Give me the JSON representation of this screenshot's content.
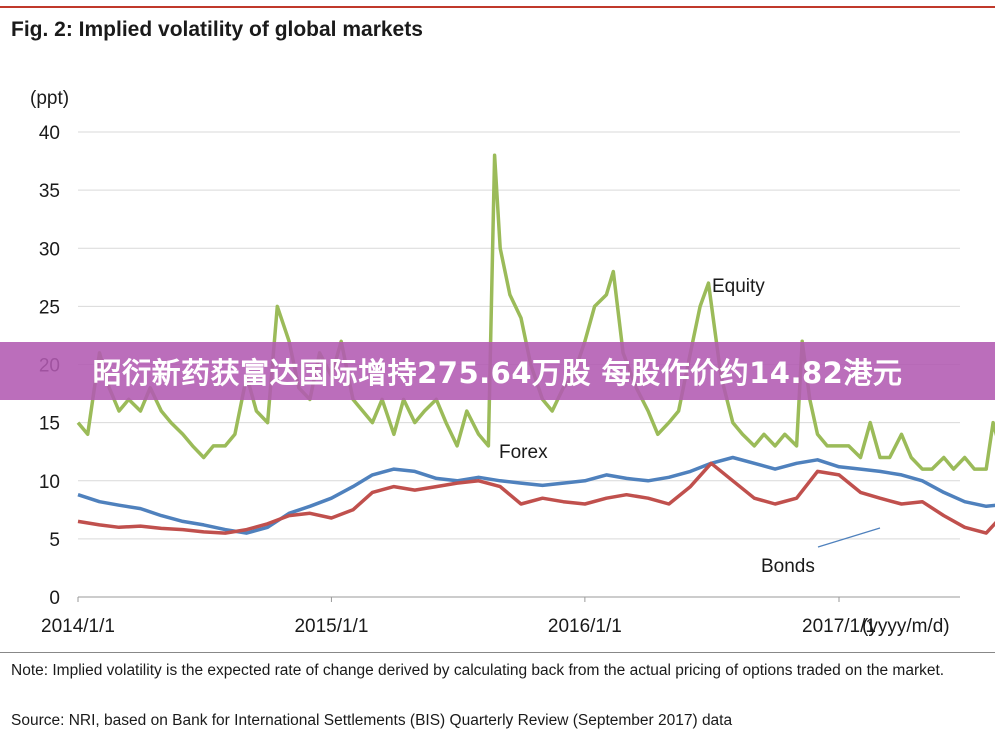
{
  "figure": {
    "title": "Fig. 2: Implied volatility of global markets",
    "note": "Note: Implied volatility is the expected rate of change derived by calculating back from the actual pricing of options traded on the market.",
    "source": "Source: NRI, based on Bank for International Settlements (BIS) Quarterly Review (September 2017) data"
  },
  "banner": {
    "text": "昭衍新药获富达国际增持275.64万股 每股作价约14.82港元"
  },
  "chart_data": {
    "type": "line",
    "title": "Fig. 2: Implied volatility of global markets",
    "ylabel": "(ppt)",
    "xlabel": "(yyyy/m/d)",
    "ylim": [
      0,
      40
    ],
    "yticks": [
      0,
      5,
      10,
      15,
      20,
      25,
      30,
      35,
      40
    ],
    "ytick_labels": [
      "0",
      "5",
      "10",
      "15",
      "20",
      "25",
      "30",
      "35",
      "40"
    ],
    "xlim": [
      "2014-01-01",
      "2017-09-01"
    ],
    "xticks": [
      "2014/1/1",
      "2015/1/1",
      "2016/1/1",
      "2017/1/1"
    ],
    "grid": true,
    "legend": "inline labels",
    "series": [
      {
        "name": "Equity",
        "color": "#9bbb59",
        "x": [
          "2014-01-01",
          "2014-01-15",
          "2014-02-01",
          "2014-02-15",
          "2014-03-01",
          "2014-03-15",
          "2014-04-01",
          "2014-04-15",
          "2014-05-01",
          "2014-05-15",
          "2014-06-01",
          "2014-06-15",
          "2014-07-01",
          "2014-07-15",
          "2014-08-01",
          "2014-08-15",
          "2014-09-01",
          "2014-09-15",
          "2014-10-01",
          "2014-10-15",
          "2014-11-01",
          "2014-11-15",
          "2014-12-01",
          "2014-12-15",
          "2015-01-01",
          "2015-01-15",
          "2015-02-01",
          "2015-02-15",
          "2015-03-01",
          "2015-03-15",
          "2015-04-01",
          "2015-04-15",
          "2015-05-01",
          "2015-05-15",
          "2015-06-01",
          "2015-06-15",
          "2015-07-01",
          "2015-07-15",
          "2015-08-01",
          "2015-08-15",
          "2015-08-24",
          "2015-09-01",
          "2015-09-15",
          "2015-10-01",
          "2015-10-15",
          "2015-11-01",
          "2015-11-15",
          "2015-12-01",
          "2015-12-15",
          "2016-01-01",
          "2016-01-15",
          "2016-02-01",
          "2016-02-11",
          "2016-02-25",
          "2016-03-15",
          "2016-04-01",
          "2016-04-15",
          "2016-05-01",
          "2016-05-15",
          "2016-06-01",
          "2016-06-15",
          "2016-06-27",
          "2016-07-15",
          "2016-08-01",
          "2016-08-15",
          "2016-09-01",
          "2016-09-15",
          "2016-10-01",
          "2016-10-15",
          "2016-11-01",
          "2016-11-09",
          "2016-11-20",
          "2016-12-01",
          "2016-12-15",
          "2017-01-01",
          "2017-01-15",
          "2017-02-01",
          "2017-02-15",
          "2017-03-01",
          "2017-03-15",
          "2017-04-01",
          "2017-04-15",
          "2017-05-01",
          "2017-05-15",
          "2017-06-01",
          "2017-06-15",
          "2017-07-01",
          "2017-07-15",
          "2017-08-01",
          "2017-08-11",
          "2017-08-20",
          "2017-09-01"
        ],
        "values": [
          15,
          14,
          21,
          18,
          16,
          17,
          16,
          18,
          16,
          15,
          14,
          13,
          12,
          13,
          13,
          14,
          19,
          16,
          15,
          25,
          22,
          18,
          17,
          21,
          19,
          22,
          17,
          16,
          15,
          17,
          14,
          17,
          15,
          16,
          17,
          15,
          13,
          16,
          14,
          13,
          38,
          30,
          26,
          24,
          20,
          17,
          16,
          18,
          19,
          22,
          25,
          26,
          28,
          21,
          18,
          16,
          14,
          15,
          16,
          21,
          25,
          27,
          19,
          15,
          14,
          13,
          14,
          13,
          14,
          13,
          22,
          17,
          14,
          13,
          13,
          13,
          12,
          15,
          12,
          12,
          14,
          12,
          11,
          11,
          12,
          11,
          12,
          11,
          11,
          15,
          13,
          11
        ]
      },
      {
        "name": "Forex",
        "color": "#4f81bd",
        "x": [
          "2014-01-01",
          "2014-02-01",
          "2014-03-01",
          "2014-04-01",
          "2014-05-01",
          "2014-06-01",
          "2014-07-01",
          "2014-08-01",
          "2014-09-01",
          "2014-10-01",
          "2014-11-01",
          "2014-12-01",
          "2015-01-01",
          "2015-02-01",
          "2015-03-01",
          "2015-04-01",
          "2015-05-01",
          "2015-06-01",
          "2015-07-01",
          "2015-08-01",
          "2015-09-01",
          "2015-10-01",
          "2015-11-01",
          "2015-12-01",
          "2016-01-01",
          "2016-02-01",
          "2016-03-01",
          "2016-04-01",
          "2016-05-01",
          "2016-06-01",
          "2016-07-01",
          "2016-08-01",
          "2016-09-01",
          "2016-10-01",
          "2016-11-01",
          "2016-12-01",
          "2017-01-01",
          "2017-02-01",
          "2017-03-01",
          "2017-04-01",
          "2017-05-01",
          "2017-06-01",
          "2017-07-01",
          "2017-08-01",
          "2017-09-01"
        ],
        "values": [
          8.8,
          8.2,
          7.9,
          7.6,
          7.0,
          6.5,
          6.2,
          5.8,
          5.5,
          6.0,
          7.2,
          7.8,
          8.5,
          9.5,
          10.5,
          11.0,
          10.8,
          10.2,
          10.0,
          10.3,
          10.0,
          9.8,
          9.6,
          9.8,
          10.0,
          10.5,
          10.2,
          10.0,
          10.3,
          10.8,
          11.5,
          12.0,
          11.5,
          11.0,
          11.5,
          11.8,
          11.2,
          11.0,
          10.8,
          10.5,
          10.0,
          9.0,
          8.2,
          7.8,
          8.0
        ]
      },
      {
        "name": "Bonds",
        "color": "#c0504d",
        "x": [
          "2014-01-01",
          "2014-02-01",
          "2014-03-01",
          "2014-04-01",
          "2014-05-01",
          "2014-06-01",
          "2014-07-01",
          "2014-08-01",
          "2014-09-01",
          "2014-10-01",
          "2014-11-01",
          "2014-12-01",
          "2015-01-01",
          "2015-02-01",
          "2015-03-01",
          "2015-04-01",
          "2015-05-01",
          "2015-06-01",
          "2015-07-01",
          "2015-08-01",
          "2015-09-01",
          "2015-10-01",
          "2015-11-01",
          "2015-12-01",
          "2016-01-01",
          "2016-02-01",
          "2016-03-01",
          "2016-04-01",
          "2016-05-01",
          "2016-06-01",
          "2016-07-01",
          "2016-08-01",
          "2016-09-01",
          "2016-10-01",
          "2016-11-01",
          "2016-12-01",
          "2017-01-01",
          "2017-02-01",
          "2017-03-01",
          "2017-04-01",
          "2017-05-01",
          "2017-06-01",
          "2017-07-01",
          "2017-08-01",
          "2017-09-01"
        ],
        "values": [
          6.5,
          6.2,
          6.0,
          6.1,
          5.9,
          5.8,
          5.6,
          5.5,
          5.8,
          6.3,
          7.0,
          7.2,
          6.8,
          7.5,
          9.0,
          9.5,
          9.2,
          9.5,
          9.8,
          10.0,
          9.5,
          8.0,
          8.5,
          8.2,
          8.0,
          8.5,
          8.8,
          8.5,
          8.0,
          9.5,
          11.5,
          10.0,
          8.5,
          8.0,
          8.5,
          10.8,
          10.5,
          9.0,
          8.5,
          8.0,
          8.2,
          7.0,
          6.0,
          5.5,
          7.5
        ]
      }
    ],
    "annotations": [
      {
        "text": "Equity",
        "series": "Equity"
      },
      {
        "text": "Forex",
        "series": "Forex"
      },
      {
        "text": "Bonds",
        "series": "Bonds",
        "leader_line": true
      }
    ]
  }
}
